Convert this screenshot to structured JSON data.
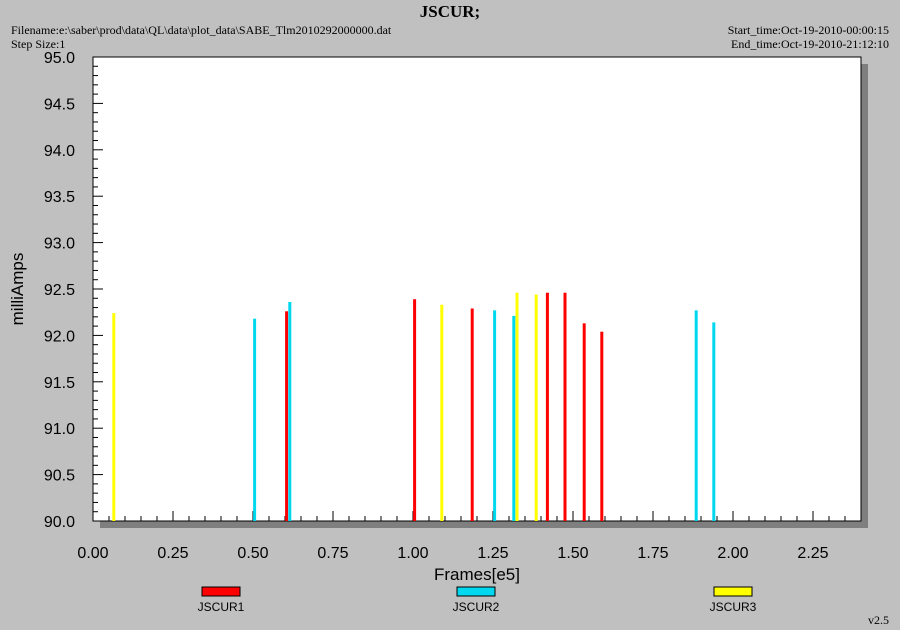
{
  "header": {
    "title": "JSCUR;",
    "filename": "Filename:e:\\saber\\prod\\data\\QL\\data\\plot_data\\SABE_Tlm2010292000000.dat",
    "step_size": "Step Size:1",
    "start_time": "Start_time:Oct-19-2010-00:00:15",
    "end_time": "End_time:Oct-19-2010-21:12:10",
    "version": "v2.5"
  },
  "chart_data": {
    "type": "bar",
    "title": "JSCUR;",
    "xlabel": "Frames[e5]",
    "ylabel": "milliAmps",
    "xlim": [
      0.0,
      2.4
    ],
    "ylim": [
      90.0,
      95.0
    ],
    "x_ticks": [
      "0.00",
      "0.25",
      "0.50",
      "0.75",
      "1.00",
      "1.25",
      "1.50",
      "1.75",
      "2.00",
      "2.25"
    ],
    "y_ticks": [
      "90.0",
      "90.5",
      "91.0",
      "91.5",
      "92.0",
      "92.5",
      "93.0",
      "93.5",
      "94.0",
      "94.5",
      "95.0"
    ],
    "grid": false,
    "legend_position": "bottom",
    "series": [
      {
        "name": "JSCUR1",
        "color": "#ff0000",
        "points": [
          [
            0.605,
            92.26
          ],
          [
            1.005,
            92.39
          ],
          [
            1.185,
            92.29
          ],
          [
            1.42,
            92.46
          ],
          [
            1.475,
            92.46
          ],
          [
            1.535,
            92.13
          ],
          [
            1.59,
            92.04
          ]
        ]
      },
      {
        "name": "JSCUR2",
        "color": "#00d8f0",
        "points": [
          [
            0.505,
            92.18
          ],
          [
            0.615,
            92.36
          ],
          [
            1.255,
            92.27
          ],
          [
            1.315,
            92.21
          ],
          [
            1.885,
            92.27
          ],
          [
            1.94,
            92.14
          ]
        ]
      },
      {
        "name": "JSCUR3",
        "color": "#ffff00",
        "points": [
          [
            0.065,
            92.24
          ],
          [
            1.09,
            92.33
          ],
          [
            1.325,
            92.46
          ],
          [
            1.385,
            92.44
          ]
        ]
      }
    ]
  }
}
